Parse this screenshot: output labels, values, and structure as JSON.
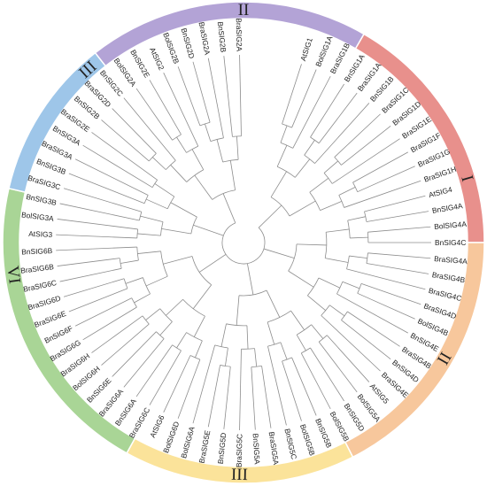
{
  "clades": [
    {
      "label": "I",
      "color": "#e8908c"
    },
    {
      "label": "II",
      "color": "#f7c79c"
    },
    {
      "label": "III",
      "color": "#fbe39a"
    },
    {
      "label": "VI",
      "color": "#a9d596"
    },
    {
      "label": "III",
      "color": "#9ec6e9"
    },
    {
      "label": "II",
      "color": "#b3a3d6"
    }
  ],
  "leaves": [
    "AtSIG1",
    "BolSIG1A",
    "BraSIG1B",
    "BnSIG1A",
    "BraSIG1A",
    "BnSIG1B",
    "BraSIG1C",
    "BraSIG1D",
    "BraSIG1E",
    "BraSIG1F",
    "BraSIG1G",
    "BraSIG1H",
    "AtSIG4",
    "BnSIG4A",
    "BolSIG4A",
    "BnSIG4C",
    "BraSIG4A",
    "BraSIG4B",
    "BraSIG4C",
    "BraSIG4D",
    "BolSIG4B",
    "BnSIG4E",
    "BraSIG4B",
    "BnSIG4D",
    "BraSIG4E",
    "AtSIG5",
    "BolSIG5A",
    "BnSIG5D",
    "BolSIG5B",
    "BnSIG5B",
    "BolSIG5B",
    "BnSIG5C",
    "BraSIG5A",
    "BnSIG5A",
    "BraSIG5C",
    "BnSIG5D",
    "BraSIG5E",
    "BolSIG6A",
    "BolSIG6D",
    "AtSIG6",
    "BraSIG6C",
    "BnSIG6A",
    "BraSIG6A",
    "BnSIG6E",
    "BolSIG6H",
    "BraSIG6H",
    "BraSIG6G",
    "BnSIG6F",
    "BraSIG6E",
    "BraSIG6D",
    "BraSIG6C",
    "BraSIG6B",
    "BnSIG6B",
    "AtSIG3",
    "BolSIG3A",
    "BnSIG3B",
    "BraSIG3C",
    "BnSIG3B",
    "BraSIG3A",
    "BnSIG3A",
    "BraSIG2E",
    "BnSIG2B",
    "BraSIG2D",
    "BnSIG2C",
    "BolSIG2A",
    "BnSIG2E",
    "AtSIG2",
    "BolSIG2B",
    "BnSIG2D",
    "BraSIG2A",
    "BnSIG2B",
    "BraSIG2A"
  ]
}
